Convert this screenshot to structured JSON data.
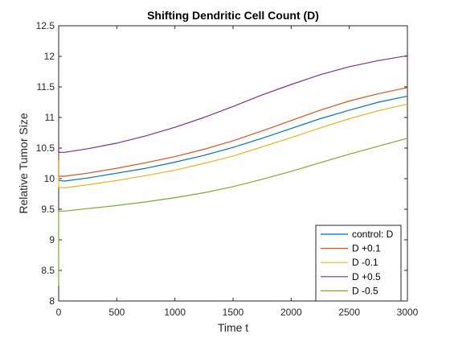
{
  "chart_data": {
    "type": "line",
    "title": "Shifting Dendritic Cell Count (D)",
    "xlabel": "Time t",
    "ylabel": "Relative Tumor Size",
    "xlim": [
      0,
      3000
    ],
    "ylim": [
      8,
      12.5
    ],
    "xticks": [
      0,
      500,
      1000,
      1500,
      2000,
      2500,
      3000
    ],
    "yticks": [
      8,
      8.5,
      9,
      9.5,
      10,
      10.5,
      11,
      11.5,
      12,
      12.5
    ],
    "grid": false,
    "legend_position": "bottom-right",
    "x": [
      0,
      50,
      250,
      500,
      750,
      1000,
      1250,
      1500,
      1750,
      2000,
      2250,
      2500,
      2750,
      3000
    ],
    "series": [
      {
        "name": "control: D",
        "color": "#0072BD",
        "y0": 10.45,
        "values": [
          9.97,
          9.96,
          10.01,
          10.09,
          10.17,
          10.27,
          10.38,
          10.51,
          10.66,
          10.82,
          10.98,
          11.12,
          11.25,
          11.35
        ]
      },
      {
        "name": "D +0.1",
        "color": "#D95319",
        "y0": 10.5,
        "values": [
          10.04,
          10.04,
          10.09,
          10.17,
          10.26,
          10.36,
          10.48,
          10.62,
          10.78,
          10.95,
          11.12,
          11.27,
          11.39,
          11.49
        ]
      },
      {
        "name": "D -0.1",
        "color": "#EDB120",
        "y0": 10.3,
        "values": [
          9.86,
          9.85,
          9.9,
          9.97,
          10.05,
          10.14,
          10.25,
          10.37,
          10.52,
          10.67,
          10.83,
          10.98,
          11.11,
          11.22
        ]
      },
      {
        "name": "D +0.5",
        "color": "#7E2F8E",
        "y0": 10.5,
        "values": [
          10.43,
          10.43,
          10.49,
          10.58,
          10.7,
          10.84,
          11.0,
          11.18,
          11.37,
          11.54,
          11.7,
          11.83,
          11.93,
          12.01
        ]
      },
      {
        "name": "D -0.5",
        "color": "#77AC30",
        "y0": 8.25,
        "values": [
          9.47,
          9.47,
          9.51,
          9.56,
          9.62,
          9.69,
          9.77,
          9.87,
          9.99,
          10.12,
          10.26,
          10.4,
          10.53,
          10.66
        ]
      }
    ]
  }
}
